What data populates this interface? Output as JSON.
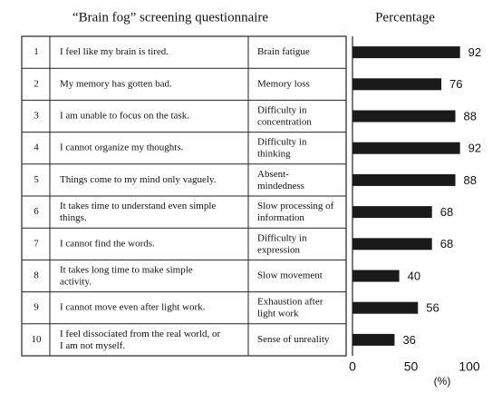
{
  "title": "“Brain fog” screening questionnaire",
  "table": {
    "rows": [
      [
        "1",
        "I feel like my brain is tired.",
        "Brain fatigue"
      ],
      [
        "2",
        "My memory has gotten bad.",
        "Memory loss"
      ],
      [
        "3",
        "I am unable to focus on the task.",
        "Difficulty in\nconcentration"
      ],
      [
        "4",
        "I cannot organize my thoughts.",
        "Difficulty in\nthinking"
      ],
      [
        "5",
        "Things come to my mind only vaguely.",
        "Absent-\nmindedness"
      ],
      [
        "6",
        "It takes time to understand even simple\nthings.",
        "Slow processing of\ninformation"
      ],
      [
        "7",
        "I cannot find the words.",
        "Difficulty in\nexpression"
      ],
      [
        "8",
        "It takes long time to make simple\nactivity.",
        "Slow movement"
      ],
      [
        "9",
        "I cannot move even after light work.",
        "Exhaustion after\nlight work"
      ],
      [
        "10",
        "I feel dissociated from the real world, or\nI am not myself.",
        "Sense of unreality"
      ]
    ]
  },
  "chart_data": {
    "type": "bar",
    "orientation": "horizontal",
    "title": "Percentage",
    "x_label": "(%)",
    "values": [
      92,
      76,
      88,
      92,
      88,
      68,
      68,
      40,
      56,
      36
    ],
    "color": "#1a1a1a",
    "xlim": [
      0,
      100
    ],
    "xticks": [
      0,
      50,
      100
    ],
    "grid": false
  }
}
